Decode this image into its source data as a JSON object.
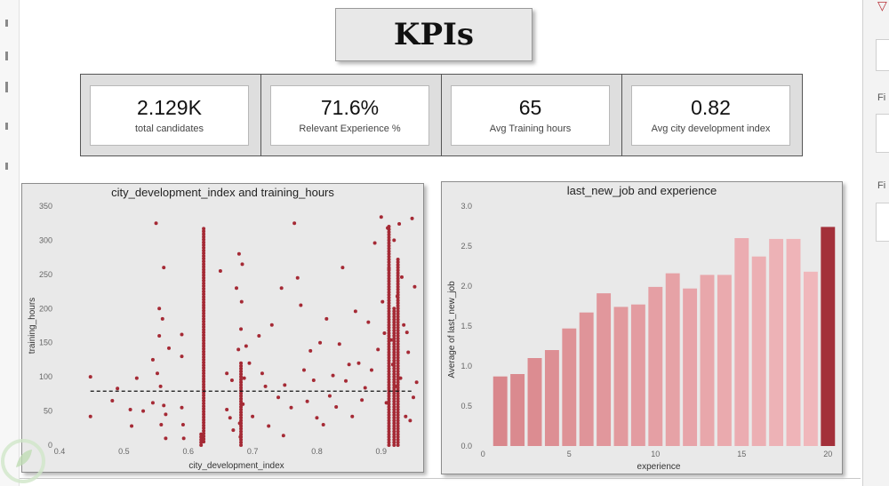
{
  "header": {
    "title": "KPIs"
  },
  "kpis": [
    {
      "value": "2.129K",
      "label": "total candidates"
    },
    {
      "value": "71.6%",
      "label": "Relevant Experience %"
    },
    {
      "value": "65",
      "label": "Avg Training hours"
    },
    {
      "value": "0.82",
      "label": "Avg city development index"
    }
  ],
  "right_panel": {
    "label_1": "Fi",
    "label_2": "Fi"
  },
  "colors": {
    "scatter": "#a52a35",
    "bar_light": "#f0b7bb",
    "bar_mid": "#d9878c",
    "bar_dark": "#a3303a",
    "panel": "#e9e9e9"
  },
  "chart_data": [
    {
      "type": "scatter",
      "title": "city_development_index and training_hours",
      "xlabel": "city_development_index",
      "ylabel": "training_hours",
      "xlim": [
        0.4,
        0.95
      ],
      "ylim": [
        0,
        350
      ],
      "xticks": [
        "0.4",
        "0.5",
        "0.6",
        "0.7",
        "0.8",
        "0.9"
      ],
      "yticks": [
        "0",
        "50",
        "100",
        "150",
        "200",
        "250",
        "300",
        "350"
      ],
      "trend_line": {
        "style": "dashed",
        "y": 79
      },
      "points": [
        [
          0.448,
          100
        ],
        [
          0.448,
          42
        ],
        [
          0.482,
          65
        ],
        [
          0.49,
          83
        ],
        [
          0.51,
          52
        ],
        [
          0.512,
          28
        ],
        [
          0.52,
          98
        ],
        [
          0.53,
          50
        ],
        [
          0.545,
          62
        ],
        [
          0.545,
          125
        ],
        [
          0.55,
          325
        ],
        [
          0.552,
          105
        ],
        [
          0.555,
          200
        ],
        [
          0.555,
          160
        ],
        [
          0.557,
          86
        ],
        [
          0.558,
          30
        ],
        [
          0.56,
          185
        ],
        [
          0.562,
          260
        ],
        [
          0.562,
          58
        ],
        [
          0.565,
          45
        ],
        [
          0.565,
          10
        ],
        [
          0.57,
          142
        ],
        [
          0.59,
          162
        ],
        [
          0.59,
          130
        ],
        [
          0.59,
          55
        ],
        [
          0.592,
          30
        ],
        [
          0.593,
          10
        ],
        [
          0.65,
          255
        ],
        [
          0.66,
          105
        ],
        [
          0.66,
          52
        ],
        [
          0.665,
          40
        ],
        [
          0.668,
          95
        ],
        [
          0.67,
          22
        ],
        [
          0.675,
          230
        ],
        [
          0.678,
          140
        ],
        [
          0.679,
          280
        ],
        [
          0.68,
          32
        ],
        [
          0.681,
          12
        ],
        [
          0.682,
          170
        ],
        [
          0.683,
          210
        ],
        [
          0.684,
          265
        ],
        [
          0.685,
          60
        ],
        [
          0.687,
          98
        ],
        [
          0.69,
          145
        ],
        [
          0.695,
          120
        ],
        [
          0.7,
          42
        ],
        [
          0.71,
          160
        ],
        [
          0.715,
          105
        ],
        [
          0.72,
          86
        ],
        [
          0.725,
          28
        ],
        [
          0.73,
          176
        ],
        [
          0.74,
          70
        ],
        [
          0.745,
          230
        ],
        [
          0.748,
          14
        ],
        [
          0.75,
          88
        ],
        [
          0.76,
          55
        ],
        [
          0.765,
          325
        ],
        [
          0.77,
          245
        ],
        [
          0.775,
          205
        ],
        [
          0.78,
          110
        ],
        [
          0.785,
          64
        ],
        [
          0.79,
          138
        ],
        [
          0.795,
          95
        ],
        [
          0.8,
          40
        ],
        [
          0.805,
          150
        ],
        [
          0.81,
          30
        ],
        [
          0.815,
          185
        ],
        [
          0.82,
          72
        ],
        [
          0.825,
          102
        ],
        [
          0.83,
          56
        ],
        [
          0.835,
          148
        ],
        [
          0.84,
          260
        ],
        [
          0.845,
          94
        ],
        [
          0.85,
          118
        ],
        [
          0.855,
          42
        ],
        [
          0.86,
          196
        ],
        [
          0.865,
          120
        ],
        [
          0.87,
          66
        ],
        [
          0.875,
          84
        ],
        [
          0.88,
          180
        ],
        [
          0.885,
          110
        ],
        [
          0.89,
          296
        ],
        [
          0.895,
          140
        ],
        [
          0.9,
          334
        ],
        [
          0.902,
          210
        ],
        [
          0.905,
          164
        ],
        [
          0.908,
          62
        ],
        [
          0.91,
          318
        ],
        [
          0.912,
          258
        ],
        [
          0.915,
          154
        ],
        [
          0.918,
          118
        ],
        [
          0.92,
          300
        ],
        [
          0.922,
          86
        ],
        [
          0.925,
          218
        ],
        [
          0.928,
          324
        ],
        [
          0.93,
          98
        ],
        [
          0.932,
          246
        ],
        [
          0.935,
          176
        ],
        [
          0.938,
          42
        ],
        [
          0.94,
          165
        ],
        [
          0.942,
          136
        ],
        [
          0.945,
          36
        ],
        [
          0.948,
          332
        ],
        [
          0.95,
          70
        ],
        [
          0.952,
          232
        ],
        [
          0.955,
          92
        ]
      ],
      "columns": [
        {
          "x": 0.624,
          "y0": 5,
          "y1": 320
        },
        {
          "x": 0.682,
          "y0": 0,
          "y1": 120
        },
        {
          "x": 0.912,
          "y0": 0,
          "y1": 320
        },
        {
          "x": 0.926,
          "y0": 0,
          "y1": 275
        },
        {
          "x": 0.92,
          "y0": 0,
          "y1": 200
        },
        {
          "x": 0.62,
          "y0": 0,
          "y1": 18
        }
      ]
    },
    {
      "type": "bar",
      "title": "last_new_job and experience",
      "xlabel": "experience",
      "ylabel": "Average of last_new_job",
      "ylim": [
        0,
        3
      ],
      "yticks": [
        "0.0",
        "0.5",
        "1.0",
        "1.5",
        "2.0",
        "2.5",
        "3.0"
      ],
      "xticks": [
        "0",
        "5",
        "10",
        "15",
        "20"
      ],
      "categories": [
        1,
        2,
        3,
        4,
        5,
        6,
        7,
        8,
        9,
        10,
        11,
        12,
        13,
        14,
        15,
        16,
        17,
        18,
        19,
        20
      ],
      "values": [
        0.87,
        0.9,
        1.1,
        1.2,
        1.47,
        1.67,
        1.91,
        1.74,
        1.77,
        1.99,
        2.16,
        1.97,
        2.14,
        2.14,
        2.6,
        2.37,
        2.59,
        2.59,
        2.18,
        2.74
      ]
    }
  ]
}
